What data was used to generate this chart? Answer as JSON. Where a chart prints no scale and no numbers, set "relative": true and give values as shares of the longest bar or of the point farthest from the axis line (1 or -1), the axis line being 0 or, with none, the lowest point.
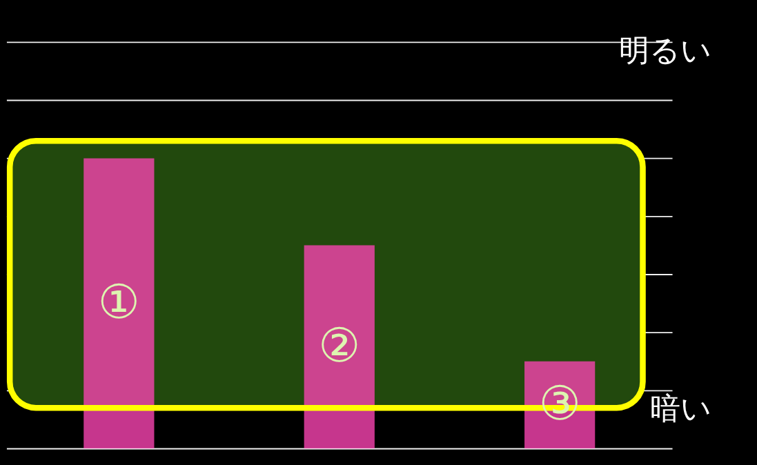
{
  "chart_data": {
    "type": "bar",
    "relative": true,
    "categories": [
      "①",
      "②",
      "③"
    ],
    "series": [
      {
        "color": "#f844b0",
        "values": [
          1,
          0.7,
          0.3
        ]
      }
    ],
    "bands": [
      {
        "axis": "y",
        "from": 0.14,
        "to": 1.06,
        "color": "#22490d"
      }
    ],
    "annotations": [
      "明るい",
      "暗い"
    ],
    "grid": "y",
    "tick_labels": false
  }
}
